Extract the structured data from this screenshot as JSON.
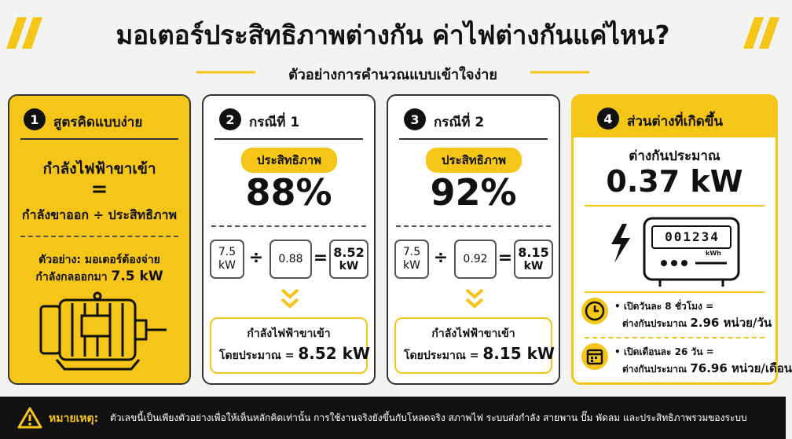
{
  "header": {
    "title": "มอเตอร์ประสิทธิภาพต่างกัน ค่าไฟต่างกันแค่ไหน?",
    "subtitle": "ตัวอย่างการคำนวณแบบเข้าใจง่าย"
  },
  "cards": [
    {
      "number": "1",
      "title": "สูตรคิดแบบง่าย",
      "formula": [
        "กำลังไฟฟ้าขาเข้า",
        "=",
        "กำลังขาออก ÷ ประสิทธิภาพ"
      ],
      "example": {
        "line1": "ตัวอย่าง: มอเตอร์ต้องจ่าย",
        "line2": "กำลังกลออกมา",
        "value": "7.5 kW"
      }
    },
    {
      "number": "2",
      "title": "กรณีที่ 1",
      "badge": "ประสิทธิภาพ",
      "efficiency": "88%",
      "calc": {
        "output": "7.5",
        "output_unit": "kW",
        "divide": "÷",
        "efficiency": "0.88",
        "equals": "=",
        "input": "8.52",
        "input_unit": "kW"
      },
      "result": {
        "label": "กำลังไฟฟ้าขาเข้า",
        "prefix": "โดยประมาณ =",
        "value": "8.52 kW"
      }
    },
    {
      "number": "3",
      "title": "กรณีที่ 2",
      "badge": "ประสิทธิภาพ",
      "efficiency": "92%",
      "calc": {
        "output": "7.5",
        "output_unit": "kW",
        "divide": "÷",
        "efficiency": "0.92",
        "equals": "=",
        "input": "8.15",
        "input_unit": "kW"
      },
      "result": {
        "label": "กำลังไฟฟ้าขาเข้า",
        "prefix": "โดยประมาณ =",
        "value": "8.15 kW"
      }
    },
    {
      "number": "4",
      "title": "ส่วนต่างที่เกิดขึ้น",
      "difference_label": "ต่างกันประมาณ",
      "difference": "0.37 kW",
      "meter": {
        "reading": "001234",
        "unit": "kWh"
      },
      "items": [
        {
          "condition": "เปิดวันละ 8 ชั่วโมง =",
          "label": "ต่างกันประมาณ",
          "value": "2.96 หน่วย/วัน"
        },
        {
          "condition": "เปิดเดือนละ 26 วัน =",
          "label": "ต่างกันประมาณ",
          "value": "76.96 หน่วย/เดือน"
        }
      ]
    }
  ],
  "footer": {
    "label": "หมายเหตุ:",
    "text": "ตัวเลขนี้เป็นเพียงตัวอย่างเพื่อให้เห็นหลักคิดเท่านั้น การใช้งานจริงยังขึ้นกับโหลดจริง สภาพไฟ ระบบส่งกำลัง สายพาน ปั๊ม พัดลม และประสิทธิภาพรวมของระบบ"
  }
}
